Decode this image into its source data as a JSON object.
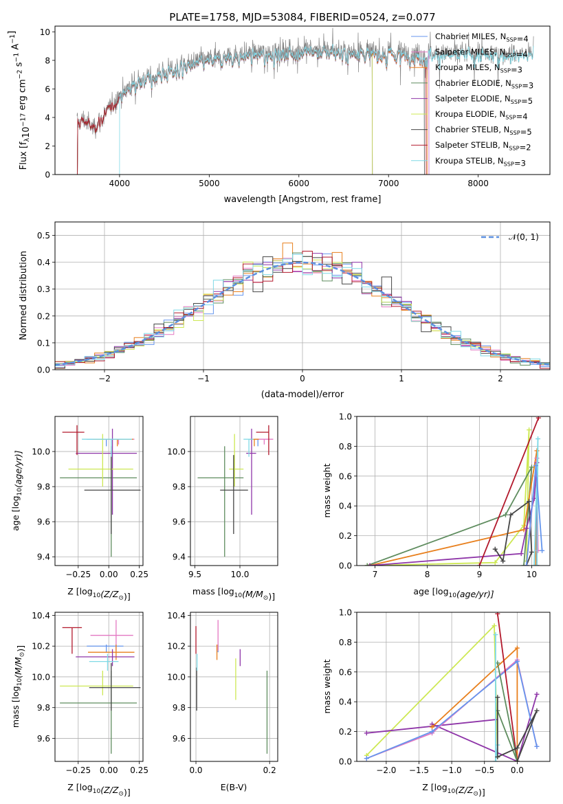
{
  "figure_title": "PLATE=1758, MJD=53084, FIBERID=0524, z=0.077",
  "model_colors": {
    "Chabrier MILES": "#6495ed",
    "Salpeter MILES": "#e377c2",
    "Kroupa MILES": "#e87f1c",
    "Chabrier ELODIE": "#5e8c5e",
    "Salpeter ELODIE": "#8e35a8",
    "Kroupa ELODIE": "#cde853",
    "Chabrier STELIB": "#444444",
    "Salpeter STELIB": "#b2182b",
    "Kroupa STELIB": "#7fd9e6",
    "data": "#808080",
    "gaussian": "#5b8fdf"
  },
  "chart_data": [
    {
      "type": "line",
      "title": "PLATE=1758, MJD=53084, FIBERID=0524, z=0.077",
      "xlabel": "wavelength [Angstrom, rest frame]",
      "ylabel_parts": [
        "Flux [f",
        "λ",
        "10",
        "−17",
        " erg cm",
        "−2",
        " s",
        "−1",
        " A",
        "−1",
        "]"
      ],
      "xlim": [
        3280,
        8800
      ],
      "ylim": [
        0,
        10.4
      ],
      "xticks": [
        "4000",
        "5000",
        "6000",
        "7000",
        "8000"
      ],
      "yticks": [
        "0",
        "2",
        "4",
        "6",
        "8",
        "10"
      ],
      "legend": [
        {
          "name": "Chabrier MILES",
          "nssp": "4"
        },
        {
          "name": "Salpeter MILES",
          "nssp": "4"
        },
        {
          "name": "Kroupa MILES",
          "nssp": "3"
        },
        {
          "name": "Chabrier ELODIE",
          "nssp": "3"
        },
        {
          "name": "Salpeter ELODIE",
          "nssp": "5"
        },
        {
          "name": "Kroupa ELODIE",
          "nssp": "4"
        },
        {
          "name": "Chabrier STELIB",
          "nssp": "5"
        },
        {
          "name": "Salpeter STELIB",
          "nssp": "2"
        },
        {
          "name": "Kroupa STELIB",
          "nssp": "3"
        }
      ],
      "nssp_label": "N",
      "nssp_sub": "SSP",
      "continuum": {
        "x": [
          3525,
          3600,
          3700,
          3800,
          3900,
          4000,
          4100,
          4200,
          4400,
          4600,
          4800,
          5000,
          5200,
          5400,
          5600,
          5800,
          6000,
          6200,
          6400,
          6600,
          6800,
          7000,
          7200,
          7400
        ],
        "y": [
          3.6,
          3.9,
          3.3,
          3.9,
          4.8,
          5.6,
          6.1,
          6.6,
          7.0,
          7.4,
          7.8,
          8.1,
          8.3,
          8.5,
          8.6,
          8.7,
          8.75,
          8.75,
          8.7,
          8.7,
          8.6,
          8.55,
          8.5,
          8.45
        ]
      },
      "model_ranges": [
        [
          3530,
          7450
        ],
        [
          3530,
          7450
        ],
        [
          3530,
          7430
        ],
        [
          3530,
          6820
        ],
        [
          3530,
          6820
        ],
        [
          3530,
          6820
        ],
        [
          3530,
          7400
        ],
        [
          3530,
          7420
        ],
        [
          4000,
          8620
        ]
      ],
      "data_range": [
        3525,
        8620
      ]
    },
    {
      "type": "histogram",
      "xlabel": "(data-model)/error",
      "ylabel": "Normed distribution",
      "xlim": [
        -2.5,
        2.5
      ],
      "ylim": [
        0,
        0.55
      ],
      "xticks": [
        "−2",
        "−1",
        "0",
        "1",
        "2"
      ],
      "yticks": [
        "0.0",
        "0.1",
        "0.2",
        "0.3",
        "0.4",
        "0.5"
      ],
      "bin_width": 0.1,
      "legend": "𝒩(0, 1)"
    },
    {
      "type": "errorbar",
      "xlabel_parts": [
        "Z [log",
        "10",
        "(Z/Z",
        "⊙",
        ")]"
      ],
      "ylabel_parts": [
        "age  [log",
        "10",
        "(age/yr)]"
      ],
      "xlim": [
        -0.44,
        0.28
      ],
      "ylim": [
        9.35,
        10.2
      ],
      "xticks": [
        "−0.25",
        "0.00",
        "0.25"
      ],
      "yticks": [
        "9.4",
        "9.6",
        "9.8",
        "10.0"
      ],
      "points": [
        {
          "model": "Chabrier MILES",
          "x": -0.02,
          "xerr": [
            0.16,
            0.14
          ],
          "y": 10.07,
          "yerr": [
            0.04,
            0.0
          ]
        },
        {
          "model": "Salpeter MILES",
          "x": 0.08,
          "xerr": [
            0.22,
            0.13
          ],
          "y": 10.07,
          "yerr": [
            0.03,
            0.0
          ]
        },
        {
          "model": "Kroupa MILES",
          "x": 0.07,
          "xerr": [
            0.2,
            0.13
          ],
          "y": 10.07,
          "yerr": [
            0.04,
            0.0
          ]
        },
        {
          "model": "Chabrier ELODIE",
          "x": 0.02,
          "xerr": [
            0.42,
            0.21
          ],
          "y": 9.85,
          "yerr": [
            0.45,
            0.18
          ]
        },
        {
          "model": "Salpeter ELODIE",
          "x": 0.03,
          "xerr": [
            0.3,
            0.2
          ],
          "y": 9.99,
          "yerr": [
            0.35,
            0.14
          ]
        },
        {
          "model": "Kroupa ELODIE",
          "x": -0.05,
          "xerr": [
            0.28,
            0.25
          ],
          "y": 9.9,
          "yerr": [
            0.1,
            0.2
          ]
        },
        {
          "model": "Chabrier STELIB",
          "x": 0.02,
          "xerr": [
            0.22,
            0.24
          ],
          "y": 9.78,
          "yerr": [
            0.25,
            0.2
          ]
        },
        {
          "model": "Salpeter STELIB",
          "x": -0.26,
          "xerr": [
            0.12,
            0.06
          ],
          "y": 10.11,
          "yerr": [
            0.13,
            0.04
          ]
        },
        {
          "model": "Kroupa STELIB",
          "x": 0.02,
          "xerr": [
            0.24,
            0.17
          ],
          "y": 10.07,
          "yerr": [
            0.1,
            0.0
          ]
        }
      ]
    },
    {
      "type": "errorbar",
      "xlabel_parts": [
        "mass [log",
        "10",
        "(M/M",
        "⊙",
        ")]"
      ],
      "xlim": [
        9.45,
        10.42
      ],
      "ylim": [
        9.35,
        10.2
      ],
      "xticks": [
        "9.5",
        "10.0"
      ],
      "yticks": [
        "9.4",
        "9.6",
        "9.8",
        "10.0"
      ],
      "points": [
        {
          "model": "Chabrier MILES",
          "x": 10.2,
          "xerr": [
            0.04,
            0.01
          ],
          "y": 10.07,
          "yerr": [
            0.04,
            0.0
          ]
        },
        {
          "model": "Salpeter MILES",
          "x": 10.27,
          "xerr": [
            0.1,
            0.1
          ],
          "y": 10.07,
          "yerr": [
            0.03,
            0.0
          ]
        },
        {
          "model": "Kroupa MILES",
          "x": 10.16,
          "xerr": [
            0.05,
            0.05
          ],
          "y": 10.07,
          "yerr": [
            0.04,
            0.0
          ]
        },
        {
          "model": "Chabrier ELODIE",
          "x": 9.83,
          "xerr": [
            0.3,
            0.21
          ],
          "y": 9.85,
          "yerr": [
            0.45,
            0.18
          ]
        },
        {
          "model": "Salpeter ELODIE",
          "x": 10.13,
          "xerr": [
            0.06,
            0.05
          ],
          "y": 9.99,
          "yerr": [
            0.35,
            0.14
          ]
        },
        {
          "model": "Kroupa ELODIE",
          "x": 9.94,
          "xerr": [
            0.06,
            0.1
          ],
          "y": 9.9,
          "yerr": [
            0.1,
            0.2
          ]
        },
        {
          "model": "Chabrier STELIB",
          "x": 9.93,
          "xerr": [
            0.15,
            0.16
          ],
          "y": 9.78,
          "yerr": [
            0.25,
            0.2
          ]
        },
        {
          "model": "Salpeter STELIB",
          "x": 10.32,
          "xerr": [
            0.14,
            0.0
          ],
          "y": 10.11,
          "yerr": [
            0.13,
            0.04
          ]
        },
        {
          "model": "Kroupa STELIB",
          "x": 10.1,
          "xerr": [
            0.06,
            0.05
          ],
          "y": 10.07,
          "yerr": [
            0.1,
            0.0
          ]
        }
      ]
    },
    {
      "type": "line",
      "xlabel_parts": [
        "age  [log",
        "10",
        "(age/yr)]"
      ],
      "ylabel": "mass weight",
      "xlim": [
        6.65,
        10.35
      ],
      "ylim": [
        0,
        1.0
      ],
      "xticks": [
        "7",
        "8",
        "9",
        "10"
      ],
      "yticks": [
        "0.0",
        "0.2",
        "0.4",
        "0.6",
        "0.8",
        "1.0"
      ],
      "series": [
        {
          "model": "Kroupa ELODIE",
          "x": [
            6.85,
            9.3,
            9.85,
            9.95,
            9.9
          ],
          "y": [
            0.0,
            0.02,
            0.27,
            0.91,
            0.03
          ]
        },
        {
          "model": "Chabrier ELODIE",
          "x": [
            6.85,
            9.5,
            10.0,
            9.85
          ],
          "y": [
            0.0,
            0.34,
            0.66,
            0.0
          ]
        },
        {
          "model": "Kroupa MILES",
          "x": [
            6.9,
            9.85,
            10.1,
            10.08
          ],
          "y": [
            0.0,
            0.24,
            0.77,
            0.0
          ]
        },
        {
          "model": "Salpeter ELODIE",
          "x": [
            6.9,
            9.8,
            9.9,
            10.05,
            10.1,
            10.1
          ],
          "y": [
            0.0,
            0.08,
            0.25,
            0.45,
            0.69,
            0.0
          ]
        },
        {
          "model": "Salpeter STELIB",
          "x": [
            9.0,
            10.13
          ],
          "y": [
            0.0,
            0.99
          ]
        },
        {
          "model": "Chabrier STELIB",
          "x": [
            9.3,
            9.45,
            9.6,
            9.95,
            10.0,
            9.9
          ],
          "y": [
            0.11,
            0.03,
            0.34,
            0.43,
            0.09,
            0.0
          ]
        },
        {
          "model": "Salpeter MILES",
          "x": [
            9.9,
            10.1,
            10.12
          ],
          "y": [
            0.0,
            0.72,
            0.1
          ]
        },
        {
          "model": "Kroupa STELIB",
          "x": [
            10.05,
            10.12,
            10.1
          ],
          "y": [
            0.0,
            0.85,
            0.0
          ]
        },
        {
          "model": "Chabrier MILES",
          "x": [
            9.9,
            10.08,
            10.2
          ],
          "y": [
            0.0,
            0.67,
            0.1
          ]
        }
      ]
    },
    {
      "type": "errorbar",
      "xlabel_parts": [
        "Z [log",
        "10",
        "(Z/Z",
        "⊙",
        ")]"
      ],
      "ylabel_parts": [
        "mass [log",
        "10",
        "(M/M",
        "⊙",
        ")]"
      ],
      "xlim": [
        -0.44,
        0.28
      ],
      "ylim": [
        9.45,
        10.42
      ],
      "xticks": [
        "−0.25",
        "0.00",
        "0.25"
      ],
      "yticks": [
        "9.6",
        "9.8",
        "10.0",
        "10.2",
        "10.4"
      ],
      "points": [
        {
          "model": "Chabrier MILES",
          "x": -0.02,
          "xerr": [
            0.16,
            0.14
          ],
          "y": 10.2,
          "yerr": [
            0.04,
            0.01
          ]
        },
        {
          "model": "Salpeter MILES",
          "x": 0.06,
          "xerr": [
            0.21,
            0.14
          ],
          "y": 10.27,
          "yerr": [
            0.1,
            0.1
          ]
        },
        {
          "model": "Kroupa MILES",
          "x": 0.06,
          "xerr": [
            0.23,
            0.15
          ],
          "y": 10.16,
          "yerr": [
            0.05,
            0.05
          ]
        },
        {
          "model": "Chabrier ELODIE",
          "x": 0.02,
          "xerr": [
            0.42,
            0.21
          ],
          "y": 9.83,
          "yerr": [
            0.33,
            0.21
          ]
        },
        {
          "model": "Salpeter ELODIE",
          "x": 0.03,
          "xerr": [
            0.3,
            0.18
          ],
          "y": 10.13,
          "yerr": [
            0.06,
            0.05
          ]
        },
        {
          "model": "Kroupa ELODIE",
          "x": -0.05,
          "xerr": [
            0.35,
            0.25
          ],
          "y": 9.94,
          "yerr": [
            0.06,
            0.1
          ]
        },
        {
          "model": "Chabrier STELIB",
          "x": 0.02,
          "xerr": [
            0.18,
            0.24
          ],
          "y": 9.93,
          "yerr": [
            0.15,
            0.16
          ]
        },
        {
          "model": "Salpeter STELIB",
          "x": -0.3,
          "xerr": [
            0.08,
            0.08
          ],
          "y": 10.32,
          "yerr": [
            0.17,
            0.0
          ]
        },
        {
          "model": "Kroupa STELIB",
          "x": -0.01,
          "xerr": [
            0.15,
            0.09
          ],
          "y": 10.1,
          "yerr": [
            0.06,
            0.05
          ]
        }
      ]
    },
    {
      "type": "errorbar",
      "xlabel": "E(B-V)",
      "xlim": [
        -0.015,
        0.222
      ],
      "ylim": [
        9.45,
        10.42
      ],
      "xticks": [
        "0.0",
        "0.2"
      ],
      "yticks": [
        "9.6",
        "9.8",
        "10.0",
        "10.2",
        "10.4"
      ],
      "points": [
        {
          "model": "Chabrier MILES",
          "x": 0.06,
          "y": 10.2,
          "yerr": [
            0.04,
            0.01
          ]
        },
        {
          "model": "Salpeter MILES",
          "x": 0.06,
          "y": 10.27,
          "yerr": [
            0.1,
            0.1
          ]
        },
        {
          "model": "Kroupa MILES",
          "x": 0.057,
          "y": 10.16,
          "yerr": [
            0.05,
            0.05
          ]
        },
        {
          "model": "Chabrier ELODIE",
          "x": 0.193,
          "y": 9.83,
          "yerr": [
            0.33,
            0.21
          ]
        },
        {
          "model": "Salpeter ELODIE",
          "x": 0.12,
          "y": 10.13,
          "yerr": [
            0.06,
            0.05
          ]
        },
        {
          "model": "Kroupa ELODIE",
          "x": 0.108,
          "y": 9.94,
          "yerr": [
            0.09,
            0.18
          ]
        },
        {
          "model": "Chabrier STELIB",
          "x": 0.002,
          "y": 9.93,
          "yerr": [
            0.15,
            0.13
          ]
        },
        {
          "model": "Salpeter STELIB",
          "x": 0.0,
          "y": 10.32,
          "yerr": [
            0.17,
            0.01
          ]
        },
        {
          "model": "Kroupa STELIB",
          "x": 0.003,
          "y": 10.1,
          "yerr": [
            0.06,
            0.05
          ]
        }
      ]
    },
    {
      "type": "line",
      "xlabel_parts": [
        "Z [log",
        "10",
        "(Z/Z",
        "⊙",
        ")]"
      ],
      "ylabel": "mass weight",
      "xlim": [
        -2.45,
        0.5
      ],
      "ylim": [
        0,
        1.0
      ],
      "xticks": [
        "−2.0",
        "−1.5",
        "−1.0",
        "−0.5",
        "0.0"
      ],
      "yticks": [
        "0.0",
        "0.2",
        "0.4",
        "0.6",
        "0.8",
        "1.0"
      ],
      "series": [
        {
          "model": "Kroupa ELODIE",
          "x": [
            -2.3,
            -0.35,
            -0.3
          ],
          "y": [
            0.04,
            0.91,
            0.03
          ]
        },
        {
          "model": "Salpeter ELODIE",
          "x": [
            -2.3,
            -0.33
          ],
          "y": [
            0.19,
            0.28
          ]
        },
        {
          "model": "Salpeter ELODIE",
          "x": [
            -1.3,
            0.0,
            0.3
          ],
          "y": [
            0.25,
            0.0,
            0.45
          ]
        },
        {
          "model": "Kroupa MILES",
          "x": [
            -1.3,
            0.0,
            0.0
          ],
          "y": [
            0.23,
            0.76,
            0.0
          ]
        },
        {
          "model": "Salpeter MILES",
          "x": [
            -2.3,
            -1.3,
            0.0,
            0.3
          ],
          "y": [
            0.02,
            0.19,
            0.68,
            0.1
          ]
        },
        {
          "model": "Chabrier MILES",
          "x": [
            -2.3,
            -1.3,
            0.0,
            0.3
          ],
          "y": [
            0.02,
            0.2,
            0.67,
            0.1
          ]
        },
        {
          "model": "Salpeter STELIB",
          "x": [
            -0.3,
            0.0
          ],
          "y": [
            0.99,
            0.0
          ]
        },
        {
          "model": "Chabrier ELODIE",
          "x": [
            -0.3,
            0.0,
            -0.3
          ],
          "y": [
            0.66,
            0.0,
            0.34
          ]
        },
        {
          "model": "Kroupa STELIB",
          "x": [
            -0.33,
            -0.33,
            -0.3
          ],
          "y": [
            0.85,
            0.0,
            0.11
          ]
        },
        {
          "model": "Chabrier STELIB",
          "x": [
            -0.3,
            -0.3,
            0.0,
            0.3,
            0.0
          ],
          "y": [
            0.43,
            0.03,
            0.09,
            0.34,
            0.0
          ]
        }
      ]
    }
  ]
}
